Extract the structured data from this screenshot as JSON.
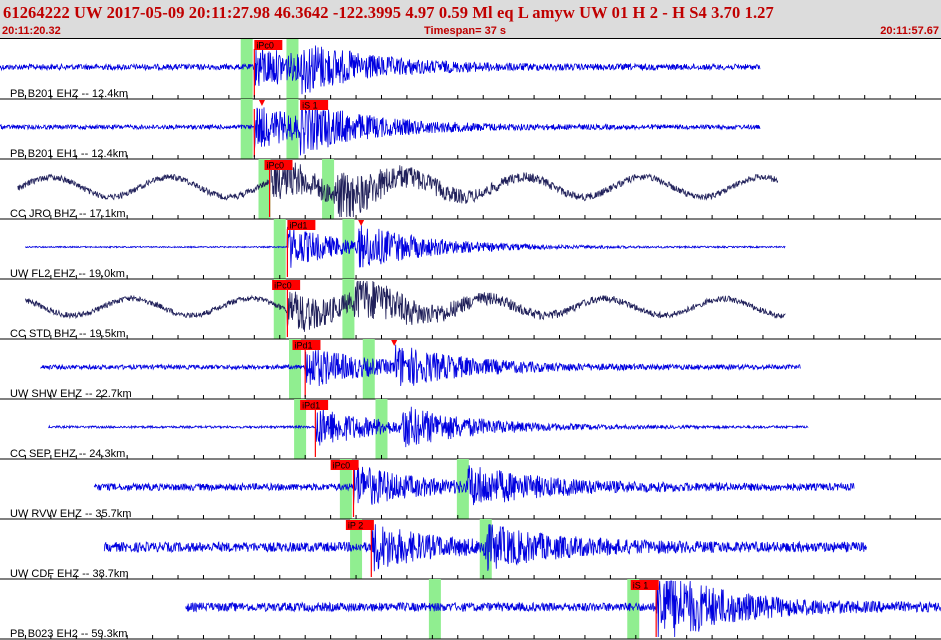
{
  "header": {
    "title": "61264222 UW 2017-05-09 20:11:27.98   46.3642 -122.3995   4.97  0.59 Ml  eq  L amyw     UW 01  H   2  -  H S4    3.70  1.27",
    "start_time": "20:11:20.32",
    "timespan": "Timespan=  37 s",
    "end_time": "20:11:57.67"
  },
  "colors": {
    "header_bg": "#dcdcdc",
    "header_text": "#c00000",
    "trace_blue": "#0000e0",
    "trace_navy": "#20205a",
    "pick_bg": "#ff0000",
    "window_green": "#90ee90",
    "grid": "#000000"
  },
  "chart_data": {
    "type": "line",
    "time_range": [
      0,
      37
    ],
    "panels": [
      {
        "label": "PB B201 EHZ -- 12.4km",
        "color": "blue",
        "start": 0.0,
        "end": 29.9,
        "amp": 0.13,
        "osc": 0,
        "p": 10.0,
        "s": 11.8,
        "pick": {
          "text": "iPc0",
          "t": 10.0
        },
        "marks": [],
        "windows": [
          9.7,
          11.5
        ]
      },
      {
        "label": "PB B201 EH1 -- 12.4km",
        "color": "blue",
        "start": 0.0,
        "end": 29.9,
        "amp": 0.1,
        "osc": 0,
        "p": 10.0,
        "s": 11.8,
        "pick": {
          "text": "iS 1",
          "t": 11.8
        },
        "marks": [
          10.3
        ],
        "windows": [
          9.7,
          11.5
        ]
      },
      {
        "label": "CC JRO BHZ -- 17.1km",
        "color": "navy",
        "start": 0.7,
        "end": 30.6,
        "amp": 0.14,
        "osc": 0.45,
        "p": 10.6,
        "s": 13.2,
        "pick": {
          "text": "iPc0",
          "t": 10.4
        },
        "marks": [],
        "windows": [
          10.4,
          12.9
        ]
      },
      {
        "label": "UW FL2 EHZ -- 19.0km",
        "color": "blue",
        "start": 1.0,
        "end": 30.9,
        "amp": 0.03,
        "osc": 0,
        "p": 11.3,
        "s": 14.1,
        "pick": {
          "text": "iPd1",
          "t": 11.3
        },
        "marks": [
          14.2
        ],
        "windows": [
          11.0,
          13.7
        ]
      },
      {
        "label": "CC STD BHZ -- 19.5km",
        "color": "navy",
        "start": 1.0,
        "end": 30.9,
        "amp": 0.13,
        "osc": 0.38,
        "p": 11.3,
        "s": 13.9,
        "pick": {
          "text": "iPc0",
          "t": 10.7
        },
        "marks": [],
        "windows": [
          11.0,
          13.7
        ]
      },
      {
        "label": "UW SHW EHZ -- 22.7km",
        "color": "blue",
        "start": 1.6,
        "end": 31.5,
        "amp": 0.1,
        "osc": 0,
        "p": 12.0,
        "s": 15.5,
        "pick": {
          "text": "iPd1",
          "t": 11.5
        },
        "marks": [
          15.5
        ],
        "windows": [
          11.6,
          14.5
        ]
      },
      {
        "label": "CC SEP EHZ -- 24.3km",
        "color": "blue",
        "start": 1.9,
        "end": 31.8,
        "amp": 0.05,
        "osc": 0,
        "p": 12.4,
        "s": 15.8,
        "pick": {
          "text": "iPd1",
          "t": 11.8
        },
        "marks": [],
        "windows": [
          11.8,
          15.0
        ]
      },
      {
        "label": "UW RVW EHZ -- 35.7km",
        "color": "blue",
        "start": 3.7,
        "end": 33.6,
        "amp": 0.16,
        "osc": 0,
        "p": 13.9,
        "s": 18.4,
        "pick": {
          "text": "iPc0",
          "t": 13.0
        },
        "marks": [],
        "windows": [
          13.6,
          18.2
        ]
      },
      {
        "label": "UW CDF EHZ -- 38.7km",
        "color": "blue",
        "start": 4.1,
        "end": 34.1,
        "amp": 0.22,
        "osc": 0,
        "p": 14.6,
        "s": 19.0,
        "pick": {
          "text": "iP 2",
          "t": 13.6
        },
        "marks": [],
        "windows": [
          14.0,
          19.1
        ]
      },
      {
        "label": "PB B023 EH2 -- 59.3km",
        "color": "blue",
        "start": 7.3,
        "end": 37.0,
        "amp": 0.2,
        "osc": 0,
        "p": 25.8,
        "s": 25.8,
        "pick": {
          "text": "iS 1",
          "t": 24.8
        },
        "marks": [],
        "windows": [
          17.1,
          24.9
        ]
      }
    ]
  }
}
